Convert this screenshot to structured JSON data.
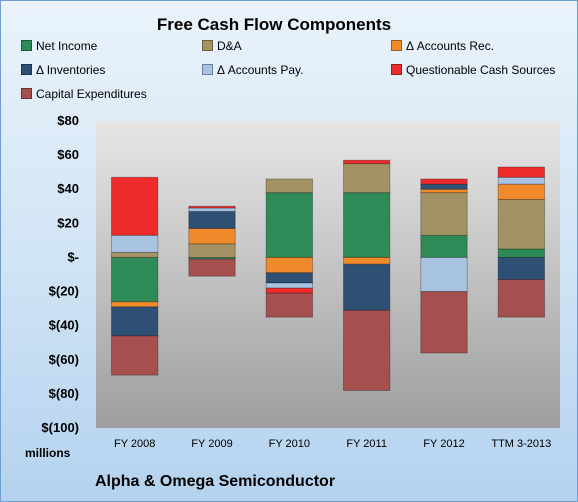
{
  "chart_data": {
    "type": "bar",
    "stacked": true,
    "title": "Free Cash Flow Components",
    "unit_label": "millions",
    "company": "Alpha & Omega Semiconductor",
    "categories": [
      "FY 2008",
      "FY 2009",
      "FY 2010",
      "FY 2011",
      "FY 2012",
      "TTM 3-2013"
    ],
    "ylim": [
      -100,
      80
    ],
    "yticks": [
      80,
      60,
      40,
      20,
      0,
      -20,
      -40,
      -60,
      -80,
      -100
    ],
    "ytick_labels": [
      "$80",
      "$60",
      "$40",
      "$20",
      "$-",
      "$(20)",
      "$(40)",
      "$(60)",
      "$(80)",
      "$(100)"
    ],
    "legend_position": "top",
    "grid": false,
    "series": [
      {
        "name": "Net Income",
        "color": "#2e8b57",
        "values": [
          -26,
          -1,
          38,
          38,
          13,
          5
        ]
      },
      {
        "name": "D&A",
        "color": "#a39364",
        "values": [
          3,
          8,
          8,
          17,
          25,
          29
        ]
      },
      {
        "name": "Δ Accounts Rec.",
        "color": "#f08a2a",
        "values": [
          -3,
          9,
          -9,
          -4,
          2,
          9
        ]
      },
      {
        "name": "Δ Inventories",
        "color": "#2f5075",
        "values": [
          -17,
          10,
          -6,
          -27,
          3,
          -13
        ]
      },
      {
        "name": "Δ Accounts Pay.",
        "color": "#a9c4e3",
        "values": [
          10,
          2,
          -3,
          0,
          -20,
          4
        ]
      },
      {
        "name": "Questionable Cash Sources",
        "color": "#ee2a2a",
        "values": [
          34,
          1,
          -3,
          2,
          3,
          6
        ]
      },
      {
        "name": "Capital Expenditures",
        "color": "#a5504f",
        "values": [
          -23,
          -10,
          -14,
          -47,
          -36,
          -22
        ]
      }
    ]
  }
}
